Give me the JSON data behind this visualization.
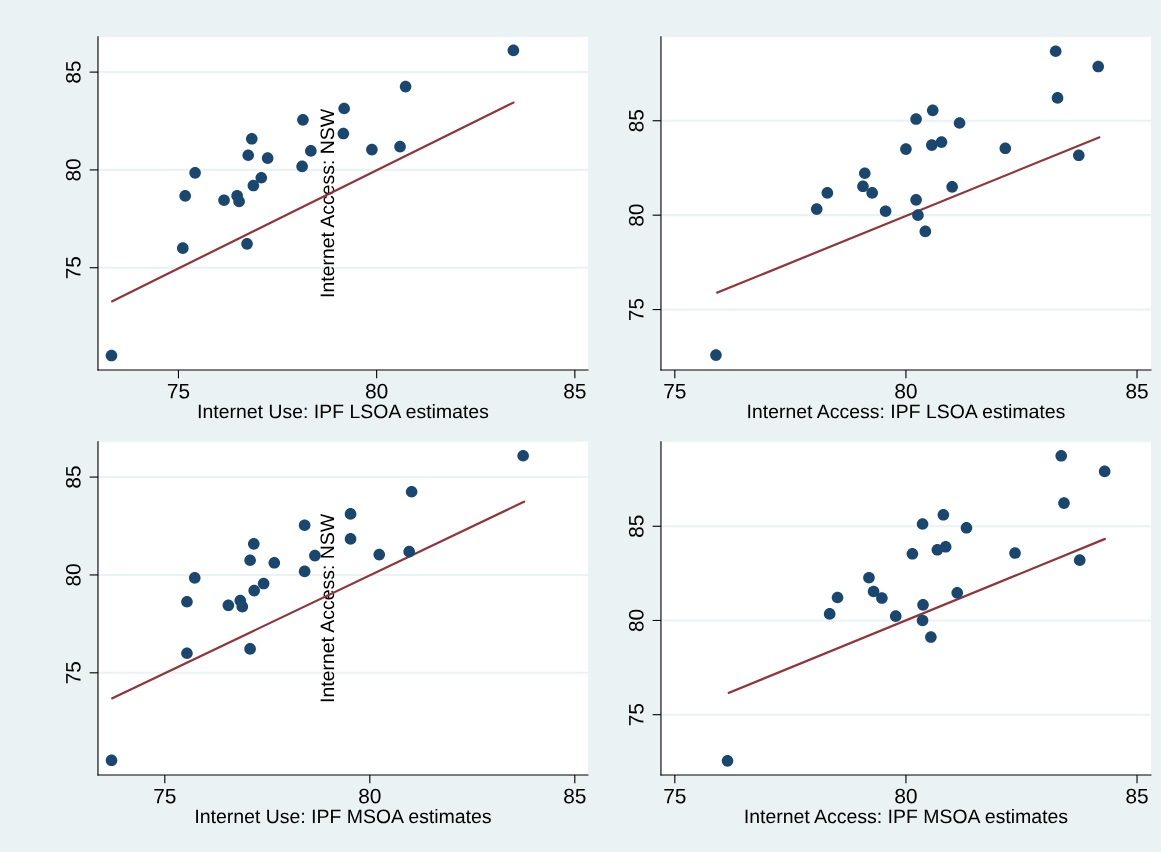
{
  "chart_data": [
    {
      "type": "scatter",
      "xlabel": "Internet Use: IPF LSOA estimates",
      "ylabel": "Internet Access: NSW",
      "xlim": [
        72.97,
        85.33
      ],
      "ylim": [
        69.77,
        86.8
      ],
      "xticks": [
        75,
        80,
        85
      ],
      "yticks": [
        75,
        80,
        85
      ],
      "grid": "y",
      "legend": false,
      "series": [
        {
          "marker": "circle",
          "color": "#1a476f",
          "x": [
            83.45,
            80.73,
            79.18,
            78.14,
            79.16,
            76.85,
            79.88,
            80.59,
            78.34,
            76.76,
            77.25,
            78.12,
            75.42,
            77.09,
            76.89,
            75.17,
            76.48,
            76.15,
            76.53,
            75.11,
            76.73,
            73.31
          ],
          "values": [
            86.11,
            84.26,
            83.14,
            82.56,
            81.86,
            81.59,
            81.04,
            81.19,
            80.97,
            80.75,
            80.6,
            80.18,
            79.85,
            79.6,
            79.2,
            78.67,
            78.68,
            78.45,
            78.39,
            76.0,
            76.22,
            70.51
          ]
        },
        {
          "type": "line",
          "color": "#90353b",
          "x": [
            73.33,
            83.45
          ],
          "values": [
            73.29,
            83.44
          ]
        }
      ]
    },
    {
      "type": "scatter",
      "xlabel": "Internet Access: IPF LSOA estimates",
      "xlim": [
        74.7,
        85.3
      ],
      "ylim": [
        71.8,
        89.44
      ],
      "xticks": [
        75,
        80,
        85
      ],
      "yticks": [
        75,
        80,
        85
      ],
      "grid": "y",
      "legend": false,
      "series": [
        {
          "marker": "circle",
          "color": "#1a476f",
          "x": [
            83.24,
            84.16,
            83.28,
            80.58,
            80.22,
            81.16,
            80.0,
            80.56,
            80.77,
            82.15,
            83.74,
            79.11,
            79.07,
            79.27,
            78.3,
            81.0,
            80.22,
            78.07,
            79.56,
            80.26,
            80.42,
            75.89
          ],
          "values": [
            88.68,
            87.87,
            86.21,
            85.55,
            85.09,
            84.88,
            83.5,
            83.71,
            83.87,
            83.54,
            83.17,
            82.22,
            81.53,
            81.18,
            81.18,
            81.5,
            80.81,
            80.32,
            80.21,
            80.0,
            79.14,
            72.59
          ]
        },
        {
          "type": "line",
          "color": "#90353b",
          "x": [
            75.92,
            84.18
          ],
          "values": [
            75.9,
            84.12
          ]
        }
      ]
    },
    {
      "type": "scatter",
      "xlabel": "Internet Use: IPF MSOA estimates",
      "ylabel": "Internet Access: NSW",
      "xlim": [
        73.37,
        85.32
      ],
      "ylim": [
        69.78,
        86.8
      ],
      "xticks": [
        75,
        80,
        85
      ],
      "yticks": [
        75,
        80,
        85
      ],
      "grid": "y",
      "legend": false,
      "series": [
        {
          "marker": "circle",
          "color": "#1a476f",
          "x": [
            83.74,
            81.02,
            79.53,
            78.41,
            79.53,
            77.17,
            77.08,
            78.66,
            80.23,
            80.96,
            77.67,
            78.41,
            75.73,
            77.41,
            77.18,
            75.54,
            76.84,
            76.55,
            76.89,
            75.54,
            77.08,
            73.7
          ],
          "values": [
            86.09,
            84.25,
            83.12,
            82.54,
            81.84,
            81.59,
            80.75,
            80.99,
            81.04,
            81.19,
            80.62,
            80.18,
            79.85,
            79.56,
            79.2,
            78.63,
            78.69,
            78.45,
            78.38,
            76.0,
            76.22,
            70.53
          ]
        },
        {
          "type": "line",
          "color": "#90353b",
          "x": [
            73.72,
            83.76
          ],
          "values": [
            73.7,
            83.74
          ]
        }
      ]
    },
    {
      "type": "scatter",
      "xlabel": "Internet Access: IPF MSOA estimates",
      "xlim": [
        74.7,
        85.3
      ],
      "ylim": [
        71.8,
        89.48
      ],
      "xticks": [
        75,
        80,
        85
      ],
      "yticks": [
        75,
        80,
        85
      ],
      "grid": "y",
      "legend": false,
      "series": [
        {
          "marker": "circle",
          "color": "#1a476f",
          "x": [
            83.36,
            84.3,
            83.42,
            80.81,
            80.36,
            81.31,
            80.14,
            80.68,
            80.86,
            82.36,
            83.76,
            79.2,
            79.3,
            79.48,
            78.52,
            81.11,
            80.37,
            78.35,
            79.78,
            80.36,
            80.54,
            76.14
          ],
          "values": [
            88.74,
            87.91,
            86.23,
            85.61,
            85.12,
            84.92,
            83.54,
            83.75,
            83.91,
            83.58,
            83.2,
            82.27,
            81.54,
            81.19,
            81.22,
            81.47,
            80.83,
            80.35,
            80.23,
            80.0,
            79.12,
            72.55
          ]
        },
        {
          "type": "line",
          "color": "#90353b",
          "x": [
            76.17,
            84.3
          ],
          "values": [
            76.16,
            84.32
          ]
        }
      ]
    }
  ]
}
